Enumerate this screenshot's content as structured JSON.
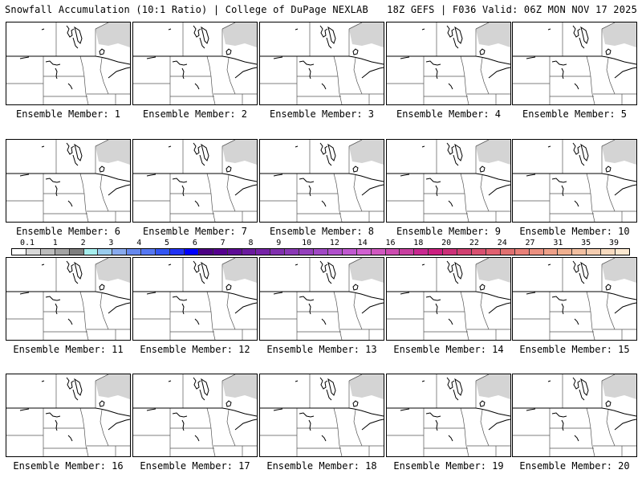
{
  "header": {
    "title": "Snowfall Accumulation (10:1 Ratio) | College of DuPage NEXLAB",
    "run_info": "18Z GEFS | F036 Valid: 06Z MON NOV 17 2025"
  },
  "panels": [
    {
      "label": "Ensemble Member: 1"
    },
    {
      "label": "Ensemble Member: 2"
    },
    {
      "label": "Ensemble Member: 3"
    },
    {
      "label": "Ensemble Member: 4"
    },
    {
      "label": "Ensemble Member: 5"
    },
    {
      "label": "Ensemble Member: 6"
    },
    {
      "label": "Ensemble Member: 7"
    },
    {
      "label": "Ensemble Member: 8"
    },
    {
      "label": "Ensemble Member: 9"
    },
    {
      "label": "Ensemble Member: 10"
    },
    {
      "label": "Ensemble Member: 11"
    },
    {
      "label": "Ensemble Member: 12"
    },
    {
      "label": "Ensemble Member: 13"
    },
    {
      "label": "Ensemble Member: 14"
    },
    {
      "label": "Ensemble Member: 15"
    },
    {
      "label": "Ensemble Member: 16"
    },
    {
      "label": "Ensemble Member: 17"
    },
    {
      "label": "Ensemble Member: 18"
    },
    {
      "label": "Ensemble Member: 19"
    },
    {
      "label": "Ensemble Member: 20"
    }
  ],
  "colorbar": {
    "labels": [
      "0.1",
      "1",
      "2",
      "3",
      "4",
      "5",
      "6",
      "7",
      "8",
      "9",
      "10",
      "12",
      "14",
      "16",
      "18",
      "20",
      "22",
      "24",
      "27",
      "31",
      "35",
      "39"
    ],
    "colors": [
      "#ffffff",
      "#d9d9d9",
      "#bdbdbd",
      "#a3a3a3",
      "#7f7f7f",
      "#a6eeee",
      "#99ccee",
      "#88aaee",
      "#6688ee",
      "#5577f2",
      "#3355f2",
      "#2233f5",
      "#0000ff",
      "#4b0082",
      "#55008e",
      "#5d0b95",
      "#6a1a9e",
      "#7522a6",
      "#8030ae",
      "#8a38b5",
      "#9440bc",
      "#a048c4",
      "#b050cc",
      "#c058d0",
      "#d060d0",
      "#d058c0",
      "#cc4cb0",
      "#c840a0",
      "#c82890",
      "#cc2080",
      "#cc3078",
      "#d04070",
      "#d85070",
      "#e06070",
      "#e07070",
      "#e88078",
      "#eb9080",
      "#eea088",
      "#f0b090",
      "#f2bfa0",
      "#f5cdb0",
      "#f8dbc0",
      "#fbe8d0"
    ]
  },
  "map_colors": {
    "snow_light": "#d4d4d4",
    "outline": "#000000",
    "boundary": "#555555"
  }
}
